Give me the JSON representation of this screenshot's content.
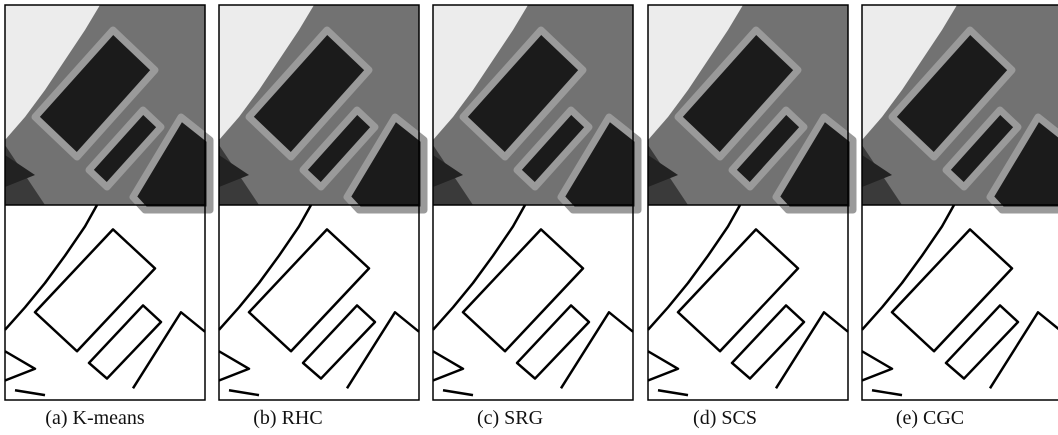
{
  "captions": [
    "(a) K-means",
    "(b) RHC",
    "(c) SRG",
    "(d) SCS",
    "(e) CGC"
  ]
}
